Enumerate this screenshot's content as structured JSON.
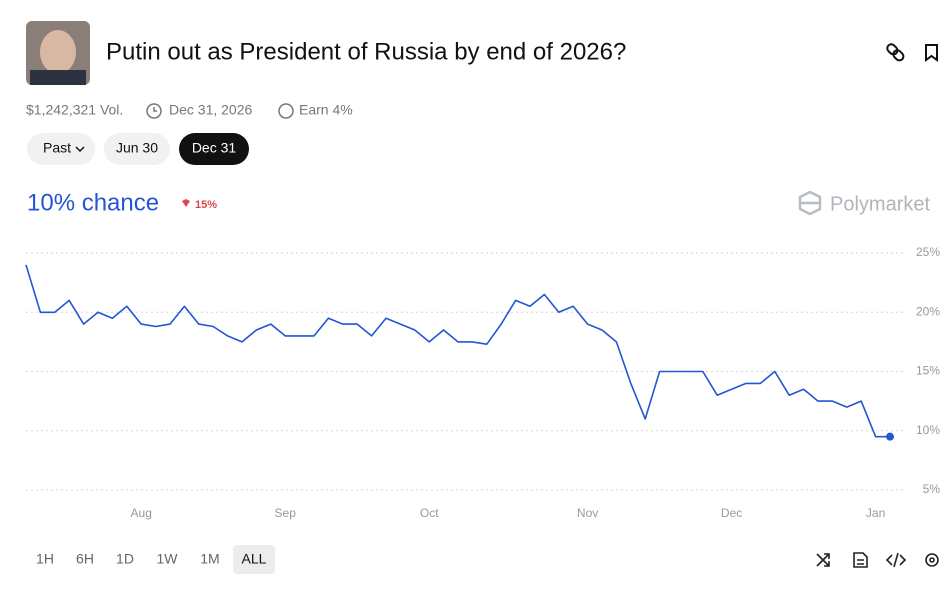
{
  "header": {
    "title": "Putin out as President of Russia by end of 2026?",
    "volume": "$1,242,321 Vol.",
    "end_date": "Dec 31, 2026",
    "earn": "Earn 4%"
  },
  "date_tabs": [
    "Past",
    "Jun 30",
    "Dec 31"
  ],
  "chance": "10% chance",
  "change": "15%",
  "brand": "Polymarket",
  "range_tabs": [
    "1H",
    "6H",
    "1D",
    "1W",
    "1M",
    "ALL"
  ],
  "chart_data": {
    "type": "line",
    "color": "#2456d3",
    "categories": [
      null,
      null,
      null,
      null,
      null,
      null,
      null,
      null,
      "Aug",
      null,
      null,
      null,
      null,
      null,
      null,
      null,
      null,
      null,
      "Sep",
      null,
      null,
      null,
      null,
      null,
      null,
      null,
      null,
      null,
      "Oct",
      null,
      null,
      null,
      null,
      null,
      null,
      null,
      null,
      null,
      null,
      "Nov",
      null,
      null,
      null,
      null,
      null,
      null,
      null,
      null,
      null,
      "Dec",
      null,
      null,
      null,
      null,
      null,
      null,
      null,
      null,
      null,
      "Jan",
      null
    ],
    "values": [
      24,
      20,
      20,
      21,
      19,
      20,
      19.5,
      20.5,
      19,
      18.8,
      19,
      20.5,
      19,
      18.8,
      18,
      17.5,
      18.5,
      19,
      18,
      18,
      18,
      19.5,
      19,
      19,
      18,
      19.5,
      19,
      18.5,
      17.5,
      18.5,
      17.5,
      17.5,
      17.3,
      19,
      21,
      20.5,
      21.5,
      20,
      20.5,
      19,
      18.5,
      17.5,
      14,
      11,
      15,
      15,
      15,
      15,
      13,
      13.5,
      14,
      14,
      15,
      13,
      13.5,
      12.5,
      12.5,
      12,
      12.5,
      9.5,
      9.5
    ],
    "ylim": [
      5,
      25
    ],
    "yticks": [
      {
        "value": 5,
        "label": "5%"
      },
      {
        "value": 10,
        "label": "10%"
      },
      {
        "value": 15,
        "label": "15%"
      },
      {
        "value": 20,
        "label": "20%"
      },
      {
        "value": 25,
        "label": "25%"
      }
    ],
    "grid": true
  }
}
